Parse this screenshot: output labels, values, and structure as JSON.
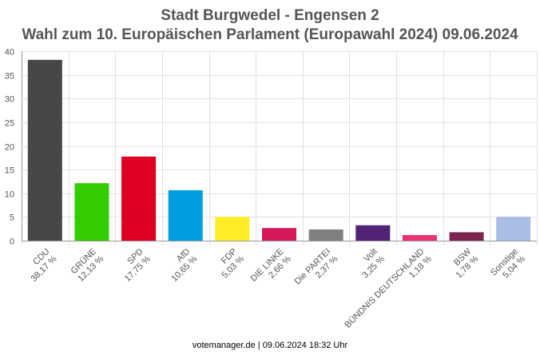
{
  "chart_data": {
    "type": "bar",
    "title": "Stadt Burgwedel - Engensen 2",
    "subtitle": "Wahl zum 10. Europäischen Parlament (Europawahl 2024) 09.06.2024",
    "categories": [
      "CDU",
      "GRÜNE",
      "SPD",
      "AfD",
      "FDP",
      "DIE LINKE",
      "Die PARTEI",
      "Volt",
      "BÜNDNIS DEUTSCHLAND",
      "BSW",
      "Sonstige"
    ],
    "value_labels": [
      "38,17 %",
      "12,13 %",
      "17,75 %",
      "10,65 %",
      "5,03 %",
      "2,66 %",
      "2,37 %",
      "3,25 %",
      "1,18 %",
      "1,78 %",
      "5,04 %"
    ],
    "values": [
      38.17,
      12.13,
      17.75,
      10.65,
      5.03,
      2.66,
      2.37,
      3.25,
      1.18,
      1.78,
      5.04
    ],
    "colors": [
      "#474747",
      "#33cc00",
      "#dd0022",
      "#009ee0",
      "#ffed2a",
      "#d6175a",
      "#808080",
      "#502379",
      "#e8336e",
      "#7b2450",
      "#a9bde6"
    ],
    "ylim": [
      0,
      40
    ],
    "yticks": [
      "0",
      "5",
      "10",
      "15",
      "20",
      "25",
      "30",
      "35",
      "40"
    ],
    "xlabel": "",
    "ylabel": "",
    "grid": true,
    "legend": "none"
  },
  "footer": "votemanager.de | 09.06.2024 18:32 Uhr"
}
